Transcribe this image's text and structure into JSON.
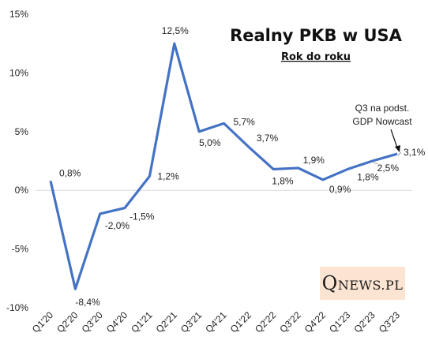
{
  "colors": {
    "line": "#4472c4",
    "grid": "#d9d9d9",
    "logo_bg": "#fbe4d2"
  },
  "chart_data": {
    "type": "line",
    "title": "Realny PKB w USA",
    "subtitle": "Rok do roku",
    "categories": [
      "Q1'20",
      "Q2'20",
      "Q3'20",
      "Q4'20",
      "Q1'21",
      "Q2'21",
      "Q3'21",
      "Q4'21",
      "Q1'22",
      "Q2'22",
      "Q3'22",
      "Q4'22",
      "Q1'23",
      "Q2'23",
      "Q3'23"
    ],
    "series": [
      {
        "values": [
          0.8,
          -8.4,
          -2.0,
          -1.5,
          1.2,
          12.5,
          5.0,
          5.7,
          3.7,
          1.8,
          1.9,
          0.9,
          1.8,
          2.5,
          3.1
        ],
        "labels": [
          "0,8%",
          "-8,4%",
          "-2,0%",
          "-1,5%",
          "1,2%",
          "12,5%",
          "5,0%",
          "5,7%",
          "3,7%",
          "1,8%",
          "1,9%",
          "0,9%",
          "1,8%",
          "2,5%",
          "3,1%"
        ]
      }
    ],
    "y_ticks": [
      15,
      10,
      5,
      0,
      -5,
      -10
    ],
    "y_tick_labels": [
      "15%",
      "10%",
      "5%",
      "0%",
      "-5%",
      "-10%"
    ],
    "ylim": [
      -10,
      15
    ],
    "grid": false,
    "annotation": {
      "line1": "Q3 na podst.",
      "line2": "GDP Nowcast",
      "points_to": "Q3'23"
    }
  },
  "logo": {
    "big": "Q",
    "rest": "NEWS.PL"
  }
}
